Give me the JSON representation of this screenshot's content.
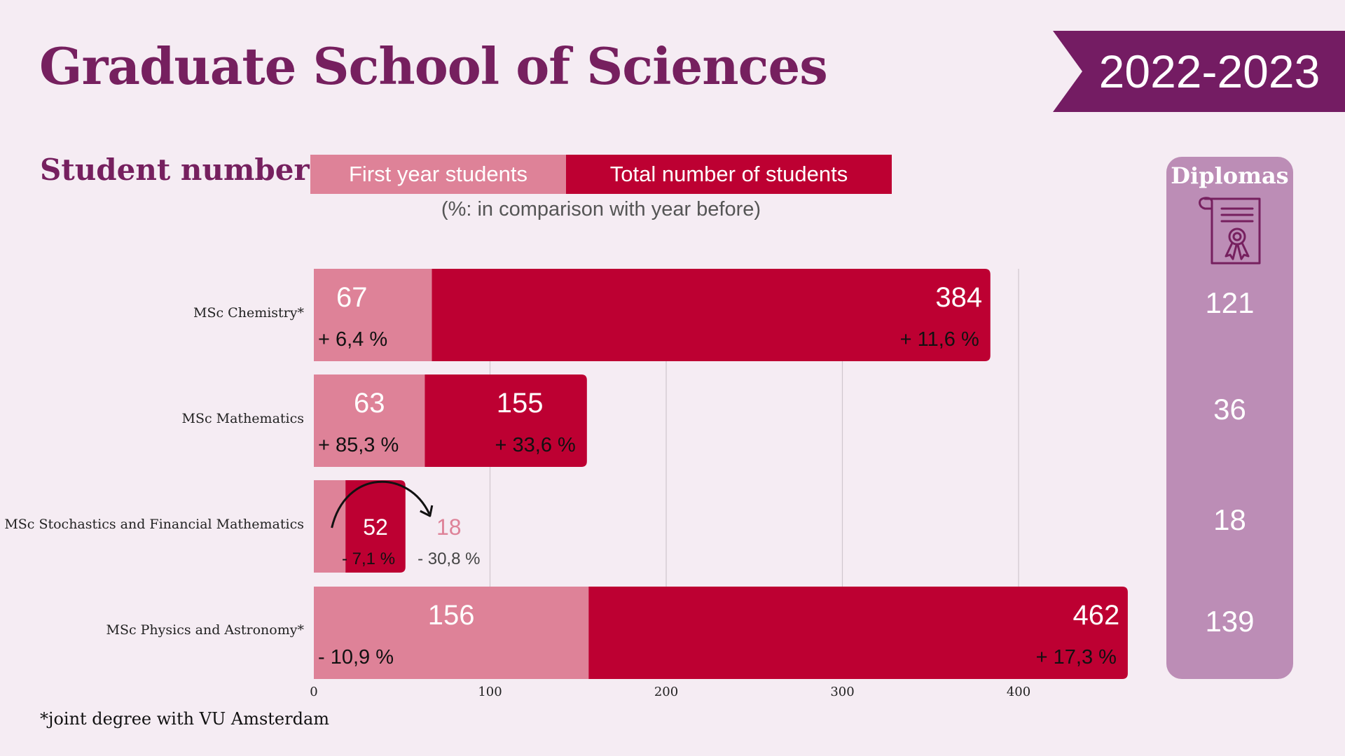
{
  "header": {
    "title": "Graduate School of Sciences",
    "year": "2022-2023"
  },
  "colors": {
    "title": "#76205f",
    "banner": "#741c63",
    "first_year": "#de8298",
    "total": "#bd0032",
    "diplomas_panel": "#bc8db6",
    "background": "#f5ecf3"
  },
  "section": {
    "title": "Student numbers",
    "legend_first_year": "First year students",
    "legend_total": "Total number of students",
    "legend_note": "(%: in comparison with year before)"
  },
  "footnote": "*joint degree with VU Amsterdam",
  "diplomas": {
    "title": "Diplomas",
    "icon": "diploma-icon",
    "values": [
      "121",
      "36",
      "18",
      "139"
    ]
  },
  "chart_data": {
    "type": "bar",
    "orientation": "horizontal",
    "overlay": true,
    "categories": [
      "MSc Chemistry*",
      "MSc Mathematics",
      "MSc Stochastics and Financial Mathematics",
      "MSc Physics and Astronomy*"
    ],
    "series": [
      {
        "name": "Total number of students",
        "values": [
          384,
          155,
          52,
          462
        ],
        "changes": [
          "+ 11,6 %",
          "+ 33,6 %",
          "- 7,1 %",
          "+ 17,3 %"
        ]
      },
      {
        "name": "First year students",
        "values": [
          67,
          63,
          18,
          156
        ],
        "changes": [
          "+ 6,4 %",
          "+ 85,3 %",
          "- 30,8 %",
          "- 10,9 %"
        ]
      }
    ],
    "xlim": [
      0,
      462
    ],
    "xticks": [
      0,
      100,
      200,
      300,
      400
    ],
    "gridlines": true,
    "annotation": "arrow from first-year segment to outside label for MSc Stochastics and Financial Mathematics"
  }
}
